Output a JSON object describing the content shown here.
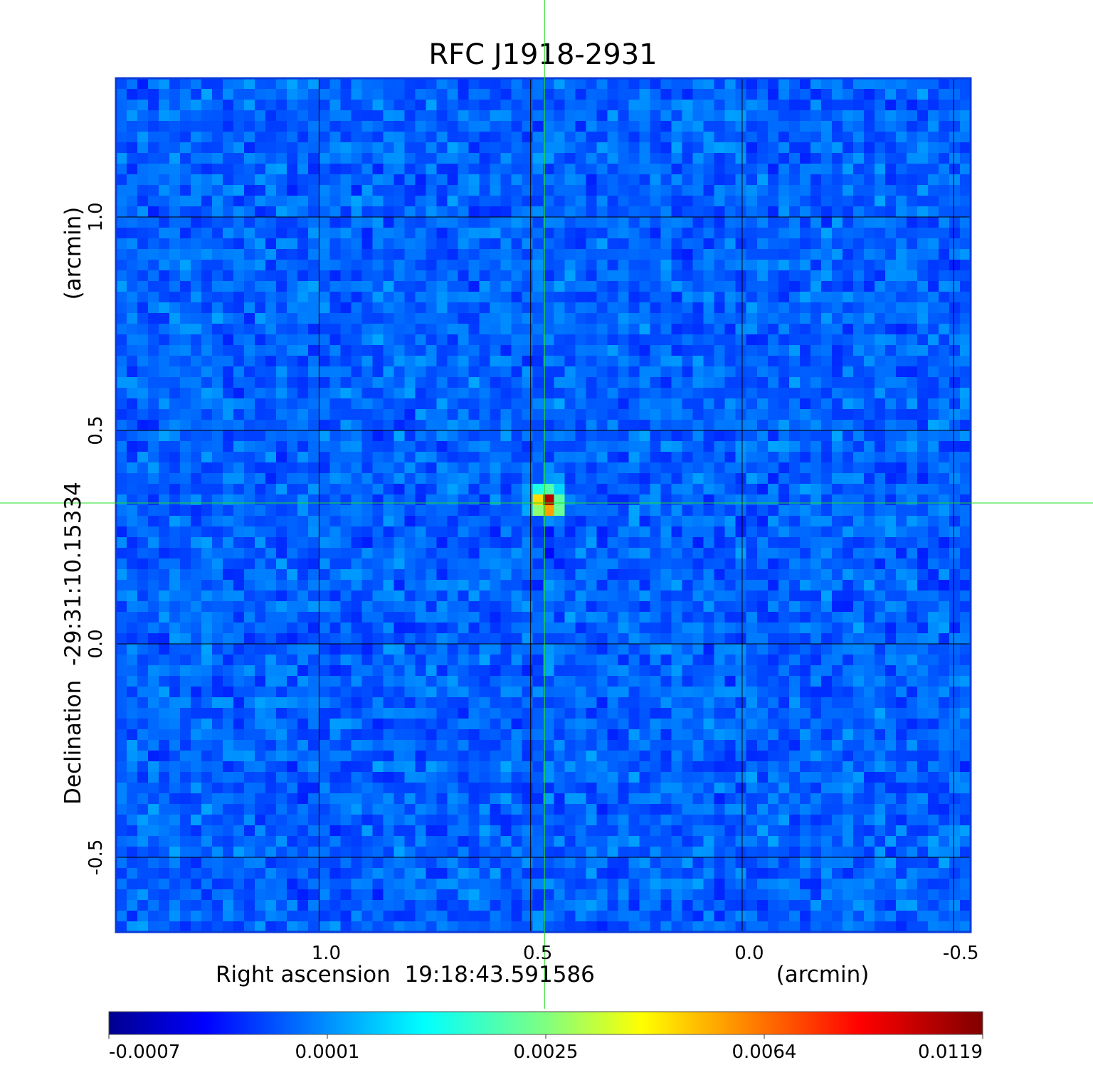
{
  "chart_data": {
    "type": "heatmap",
    "title": "RFC J1918-2931",
    "xlabel": "Right ascension  19:18:43.591586",
    "xunit": "(arcmin)",
    "ylabel": "Declination  -29:31:10.15334",
    "yunit": "(arcmin)",
    "x_ticks": [
      1.0,
      0.5,
      0.0,
      -0.5
    ],
    "x_tick_labels": [
      "1.0",
      "0.5",
      "0.0",
      "-0.5"
    ],
    "y_ticks": [
      1.0,
      0.5,
      0.0,
      -0.5
    ],
    "y_tick_labels": [
      "1.0",
      "0.5",
      "0.0",
      "-0.5"
    ],
    "xlim": [
      1.48,
      -0.54
    ],
    "ylim": [
      -0.675,
      1.325
    ],
    "grid": true,
    "crosshair": {
      "x": 0.467,
      "y": 0.33
    },
    "source_peak": {
      "x": 0.46,
      "y": 0.33,
      "value": 0.0119
    },
    "colorbar": {
      "colormap": "jet",
      "tick_labels": [
        "-0.0007",
        "0.0001",
        "0.0025",
        "0.0064",
        "0.0119"
      ],
      "min": -0.0007,
      "max": 0.0119
    },
    "colors": {
      "title": "#0f13c8",
      "frame": "#0a3cd8",
      "grid": "#000000",
      "crosshair": "#22dd22",
      "background_noise": "#1f8ef2"
    }
  }
}
